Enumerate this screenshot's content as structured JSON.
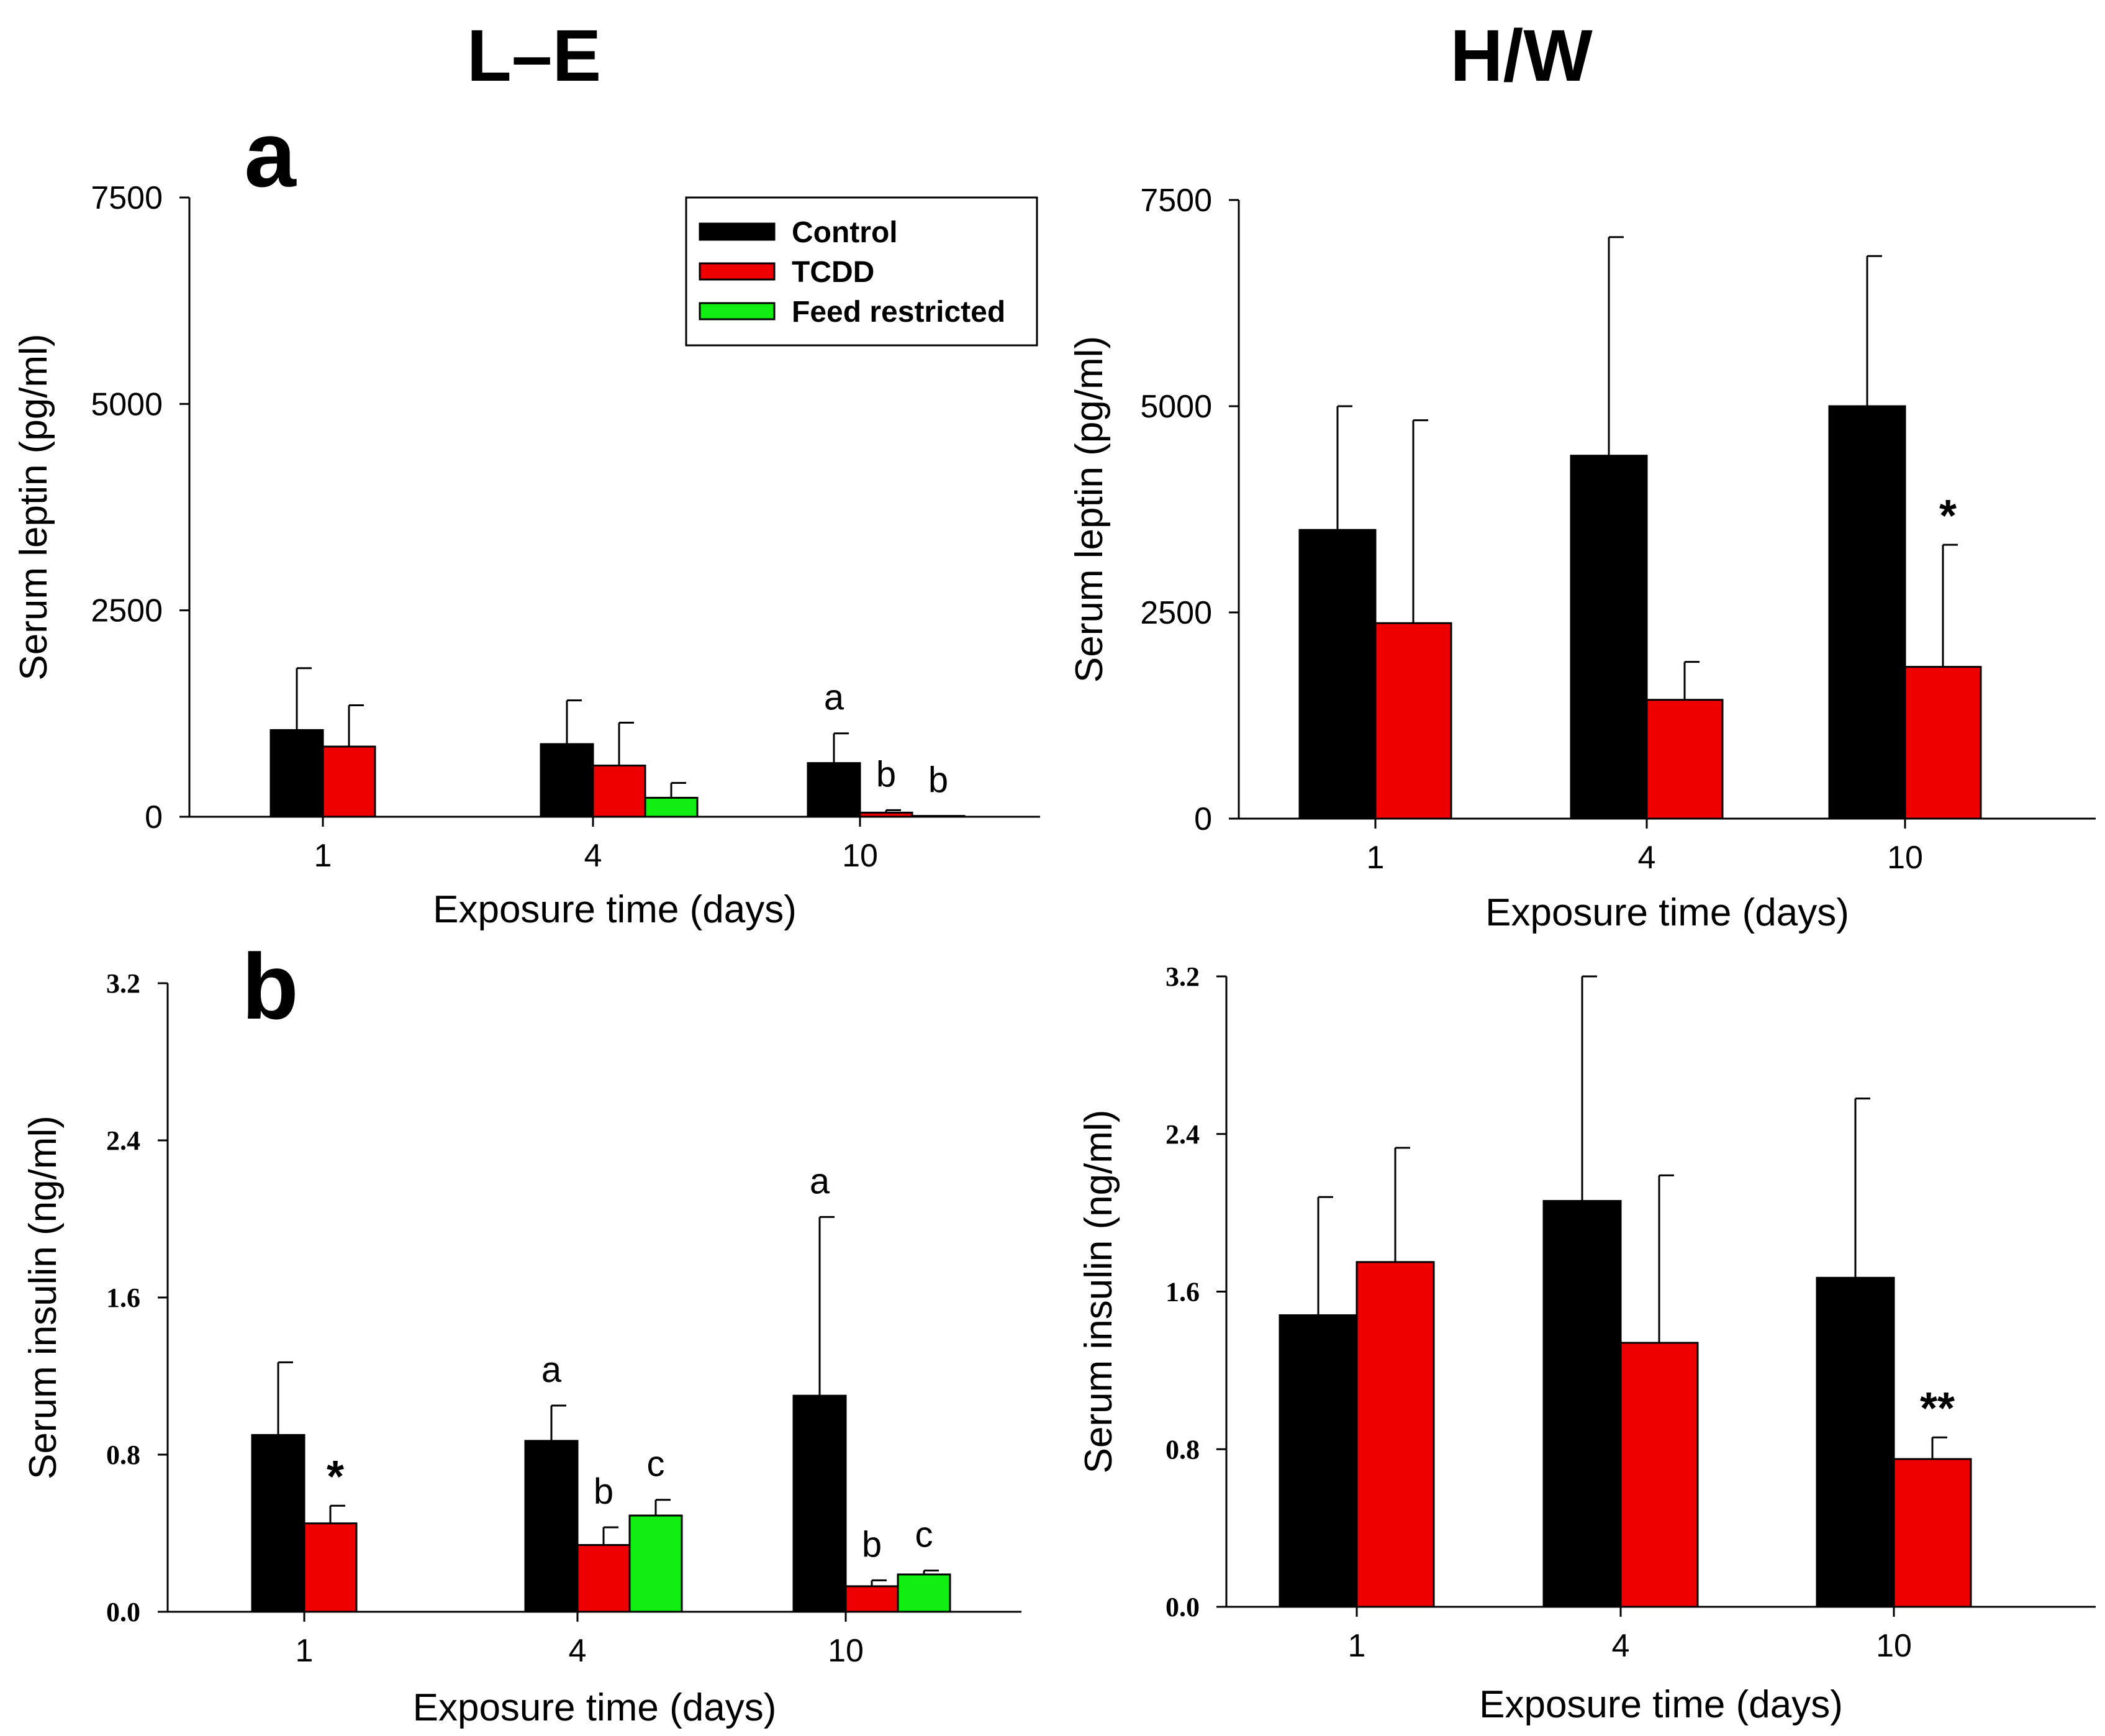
{
  "figure": {
    "strain_titles": [
      "L–E",
      "H/W"
    ],
    "panel_letters": [
      "a",
      "b"
    ]
  },
  "colors": {
    "Control": "#000000",
    "TCDD": "#ee0000",
    "Feed restricted": "#11ee11"
  },
  "legend": {
    "entries": [
      "Control",
      "TCDD",
      "Feed restricted"
    ]
  },
  "chart_data": [
    {
      "id": "le_leptin",
      "type": "bar",
      "title": "L–E",
      "panel_letter": "a",
      "xlabel": "Exposure time (days)",
      "ylabel": "Serum leptin (pg/ml)",
      "ylim": [
        0,
        7500
      ],
      "yticks": [
        0,
        2500,
        5000,
        7500
      ],
      "ytick_labels": [
        "0",
        "2500",
        "5000",
        "7500"
      ],
      "ytick_style": "sans",
      "categories": [
        "1",
        "4",
        "10"
      ],
      "series": [
        {
          "name": "Control",
          "values": [
            1050,
            880,
            650
          ],
          "errors": [
            750,
            530,
            360
          ]
        },
        {
          "name": "TCDD",
          "values": [
            850,
            620,
            50
          ],
          "errors": [
            500,
            520,
            30
          ]
        },
        {
          "name": "Feed restricted",
          "values": [
            null,
            230,
            10
          ],
          "errors": [
            null,
            180,
            0
          ]
        }
      ],
      "annotations": [
        {
          "category": 2,
          "series": 0,
          "text": "a"
        },
        {
          "category": 2,
          "series": 1,
          "text": "b"
        },
        {
          "category": 2,
          "series": 2,
          "text": "b"
        }
      ],
      "show_legend": true
    },
    {
      "id": "hw_leptin",
      "type": "bar",
      "title": "H/W",
      "xlabel": "Exposure time (days)",
      "ylabel": "Serum leptin (pg/ml)",
      "ylim": [
        0,
        7500
      ],
      "yticks": [
        0,
        2500,
        5000,
        7500
      ],
      "ytick_labels": [
        "0",
        "2500",
        "5000",
        "7500"
      ],
      "ytick_style": "sans",
      "categories": [
        "1",
        "4",
        "10"
      ],
      "series": [
        {
          "name": "Control",
          "values": [
            3500,
            4400,
            5000
          ],
          "errors": [
            1500,
            2650,
            1820
          ]
        },
        {
          "name": "TCDD",
          "values": [
            2370,
            1440,
            1840
          ],
          "errors": [
            2460,
            460,
            1480
          ]
        }
      ],
      "annotations": [
        {
          "category": 2,
          "series": 1,
          "text": "*"
        }
      ],
      "show_legend": false
    },
    {
      "id": "le_insulin",
      "type": "bar",
      "panel_letter": "b",
      "xlabel": "Exposure time (days)",
      "ylabel": "Serum insulin (ng/ml)",
      "ylim": [
        0,
        3.2
      ],
      "yticks": [
        0,
        0.8,
        1.6,
        2.4,
        3.2
      ],
      "ytick_labels": [
        "0.0",
        "0.8",
        "1.6",
        "2.4",
        "3.2"
      ],
      "ytick_style": "serif",
      "categories": [
        "1",
        "4",
        "10"
      ],
      "series": [
        {
          "name": "Control",
          "values": [
            0.9,
            0.87,
            1.1
          ],
          "errors": [
            0.37,
            0.18,
            0.91
          ]
        },
        {
          "name": "TCDD",
          "values": [
            0.45,
            0.34,
            0.13
          ],
          "errors": [
            0.09,
            0.09,
            0.03
          ]
        },
        {
          "name": "Feed restricted",
          "values": [
            null,
            0.49,
            0.19
          ],
          "errors": [
            null,
            0.08,
            0.02
          ]
        }
      ],
      "annotations": [
        {
          "category": 0,
          "series": 1,
          "text": "*"
        },
        {
          "category": 1,
          "series": 0,
          "text": "a"
        },
        {
          "category": 1,
          "series": 1,
          "text": "b"
        },
        {
          "category": 1,
          "series": 2,
          "text": "c"
        },
        {
          "category": 2,
          "series": 0,
          "text": "a"
        },
        {
          "category": 2,
          "series": 1,
          "text": "b"
        },
        {
          "category": 2,
          "series": 2,
          "text": "c"
        }
      ],
      "show_legend": false
    },
    {
      "id": "hw_insulin",
      "type": "bar",
      "xlabel": "Exposure time (days)",
      "ylabel": "Serum insulin (ng/ml)",
      "ylim": [
        0,
        3.2
      ],
      "yticks": [
        0,
        0.8,
        1.6,
        2.4,
        3.2
      ],
      "ytick_labels": [
        "0.0",
        "0.8",
        "1.6",
        "2.4",
        "3.2"
      ],
      "ytick_style": "serif",
      "categories": [
        "1",
        "4",
        "10"
      ],
      "series": [
        {
          "name": "Control",
          "values": [
            1.48,
            2.06,
            1.67
          ],
          "errors": [
            0.6,
            1.14,
            0.91
          ]
        },
        {
          "name": "TCDD",
          "values": [
            1.75,
            1.34,
            0.75
          ],
          "errors": [
            0.58,
            0.85,
            0.11
          ]
        }
      ],
      "annotations": [
        {
          "category": 2,
          "series": 1,
          "text": "**"
        }
      ],
      "show_legend": false
    }
  ]
}
